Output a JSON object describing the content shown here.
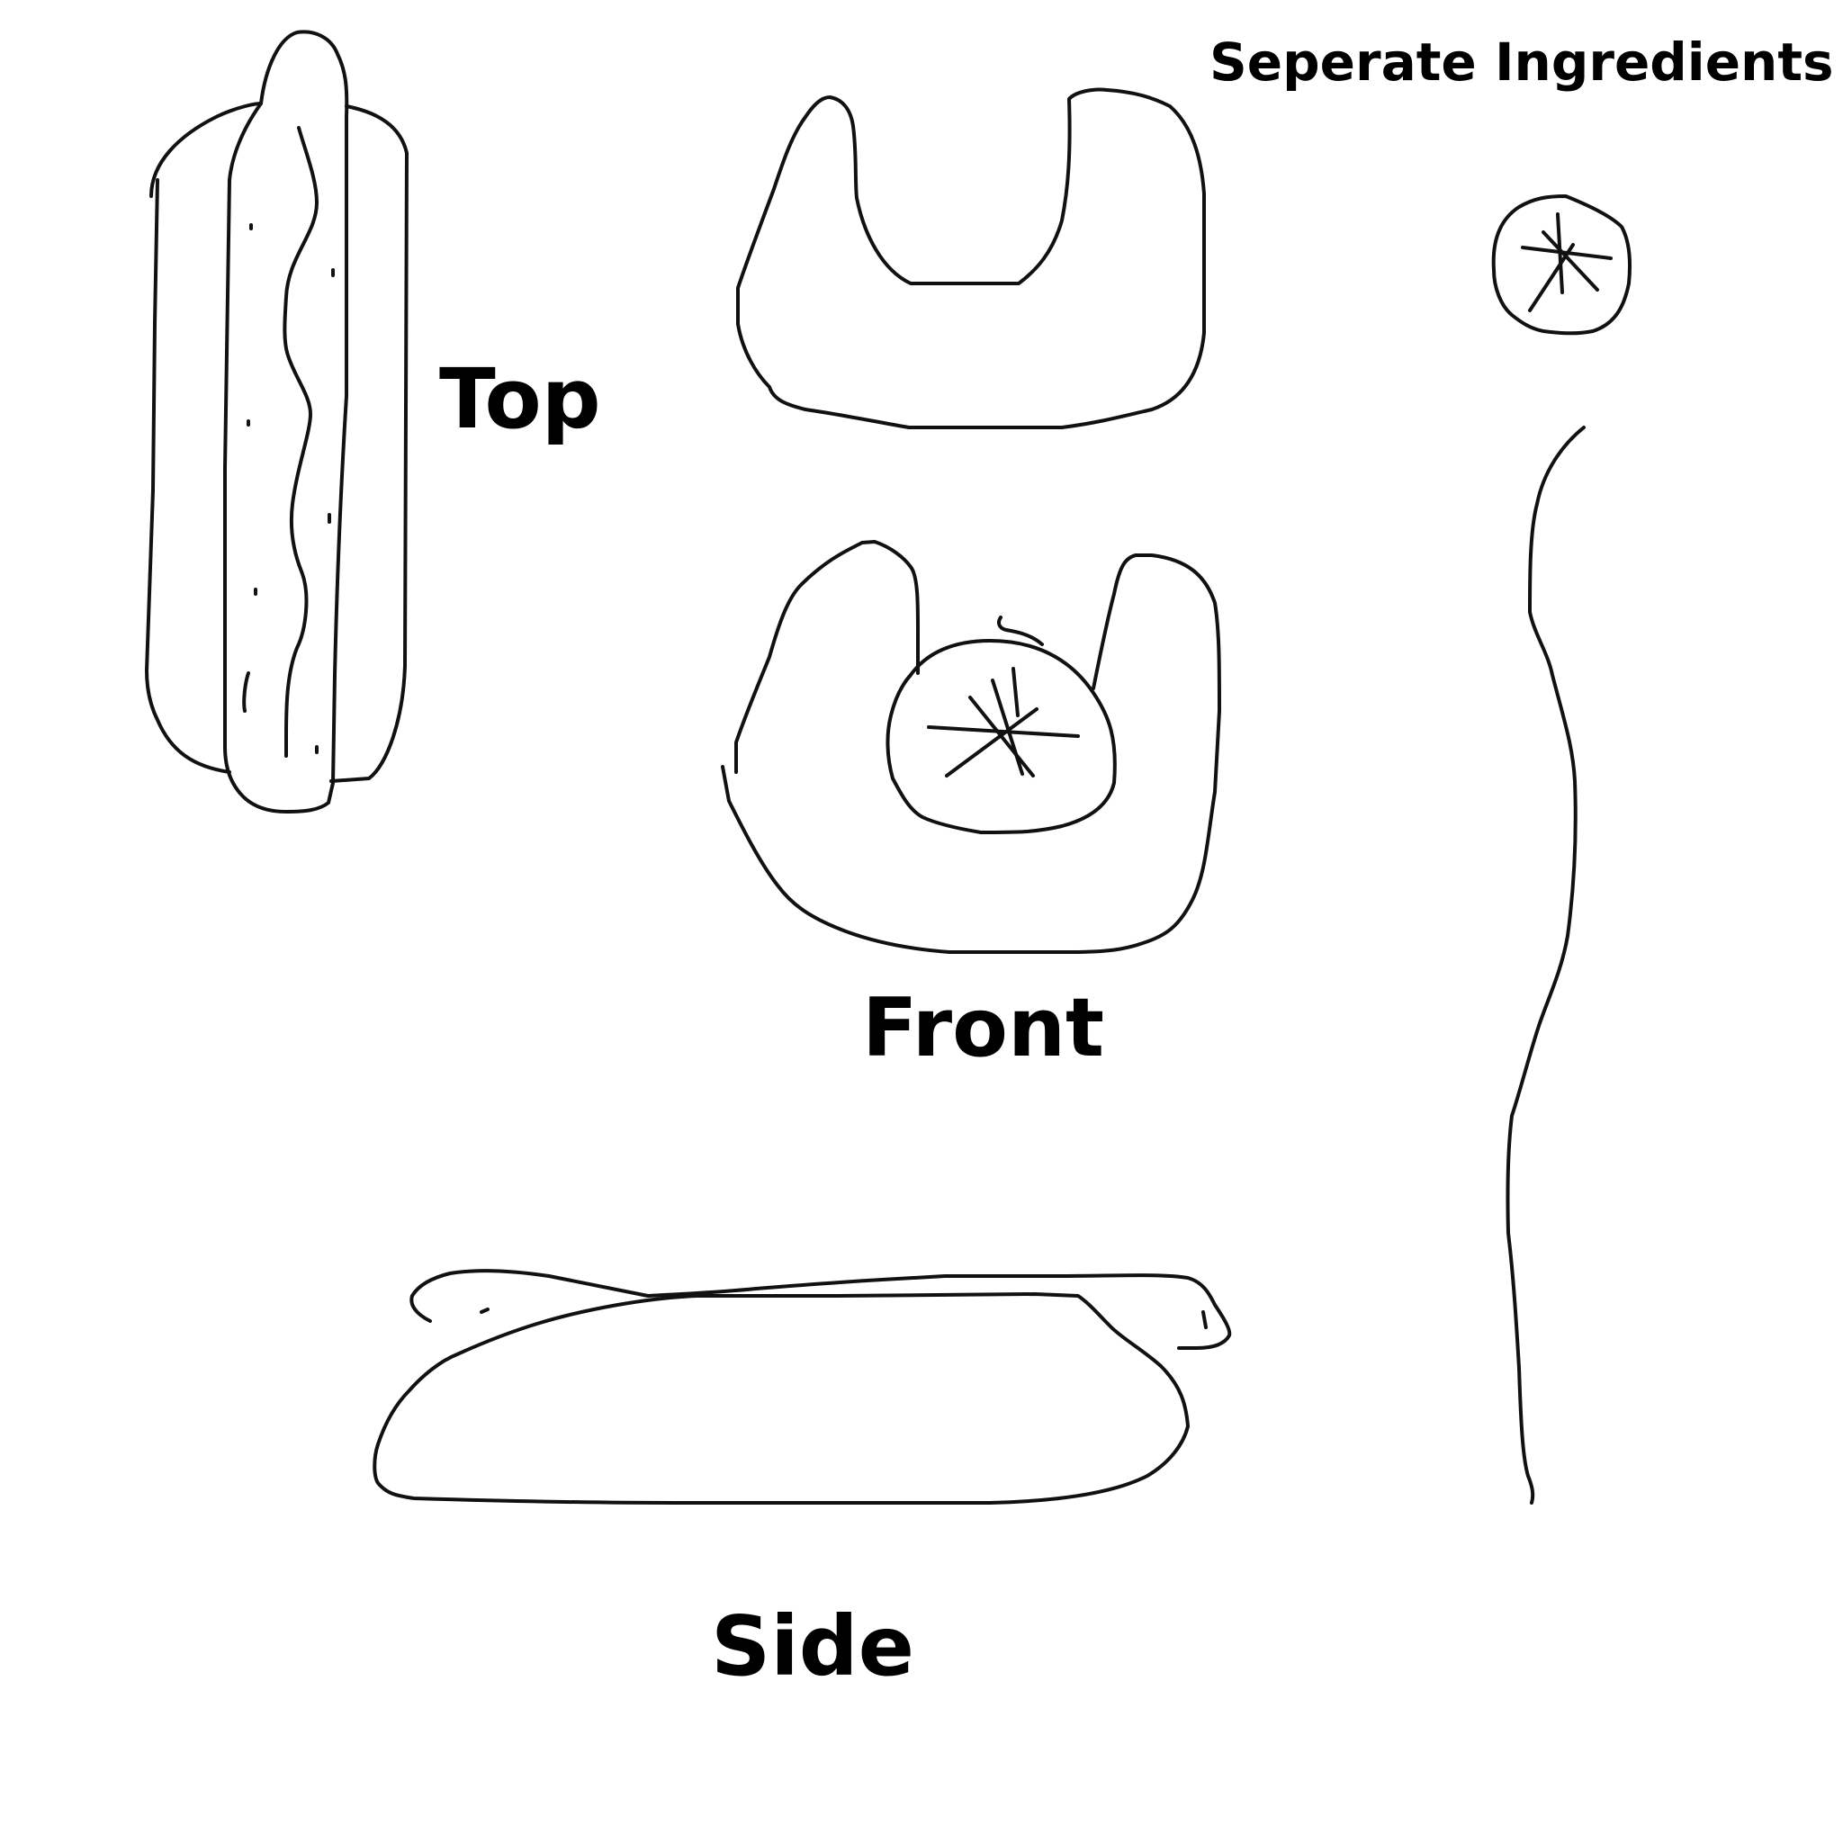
{
  "labels": {
    "top": "Top",
    "front": "Front",
    "side": "Side",
    "separate_ingredients": "Seperate Ingredients"
  },
  "colors": {
    "ink": "#111111",
    "background": "#ffffff"
  }
}
